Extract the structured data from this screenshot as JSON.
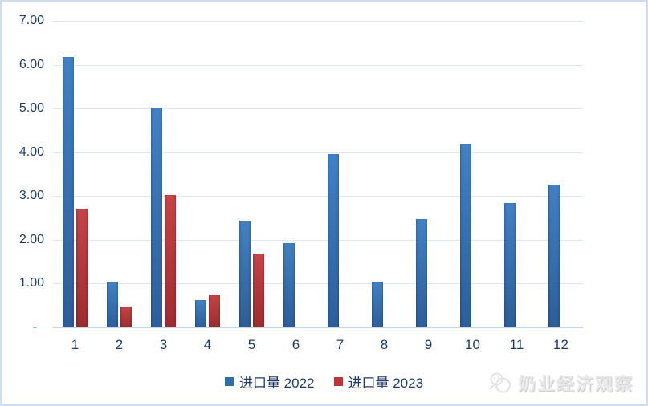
{
  "chart_data": {
    "type": "bar",
    "categories": [
      "1",
      "2",
      "3",
      "4",
      "5",
      "6",
      "7",
      "8",
      "9",
      "10",
      "11",
      "12"
    ],
    "series": [
      {
        "name": "进口量 2022",
        "year": "2022",
        "color_top": "#4181C4",
        "color_bottom": "#2C5E9A",
        "legend_color": "#2E6DA8",
        "values": [
          6.18,
          1.02,
          5.02,
          0.62,
          2.43,
          1.92,
          3.95,
          1.03,
          2.48,
          4.18,
          2.84,
          3.27
        ]
      },
      {
        "name": "进口量 2023",
        "year": "2023",
        "color_top": "#C64445",
        "color_bottom": "#9D2C2E",
        "legend_color": "#B93536",
        "values": [
          2.72,
          0.47,
          3.03,
          0.74,
          1.68,
          null,
          null,
          null,
          null,
          null,
          null,
          null
        ]
      }
    ],
    "ylim": [
      0,
      7
    ],
    "ytick_labels": [
      "7.00",
      "6.00",
      "5.00",
      "4.00",
      "3.00",
      "2.00",
      "1.00",
      "-  "
    ],
    "grid": true,
    "legend_position": "bottom"
  },
  "watermark": {
    "text": "奶业经济观察",
    "icon": "wechat-logo-icon"
  },
  "colors": {
    "axis_label": "#1F3C67",
    "gridline": "#DCE6F3",
    "axis_line": "#C5D6EC",
    "border": "#CFDEEF",
    "background": "#FFFFFF",
    "watermark_gray": "#E9E9E9"
  }
}
